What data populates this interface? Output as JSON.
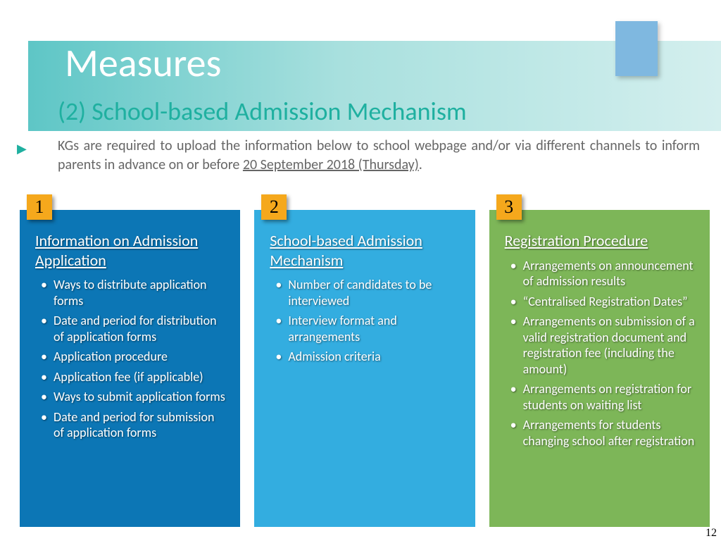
{
  "colors": {
    "header_grad_start": "#5ec6c6",
    "header_grad_end": "#d4efee",
    "corner_tab": "#7fb8e0",
    "subtitle": "#1fb0a0",
    "intro_text": "#666666",
    "card1_bg": "#0c76b5",
    "card2_bg": "#33ade0",
    "card3_bg": "#7db658",
    "badge_bg": "#f5a81c"
  },
  "title": "Measures",
  "subtitle": "(2) School-based Admission Mechanism",
  "intro_pre": "KGs are required to upload the information below to school webpage and/or via different channels to inform parents in advance on or before ",
  "intro_underlined": "20 September 2018 (Thursday)",
  "intro_post": ".",
  "page_number": "12",
  "cards": [
    {
      "badge": "1",
      "heading": "Information on Admission Application",
      "items": [
        "Ways to distribute application forms",
        "Date and period for distribution of application forms",
        "Application procedure",
        "Application fee   (if applicable)",
        "Ways to submit application forms",
        "Date and period for submission of application forms"
      ]
    },
    {
      "badge": "2",
      "heading": "School-based Admission Mechanism",
      "items": [
        "Number of candidates to be interviewed",
        "Interview format and arrangements",
        "Admission criteria"
      ]
    },
    {
      "badge": "3",
      "heading": "Registration Procedure",
      "items": [
        "Arrangements on announcement of admission results",
        " “Centralised Registration Dates”",
        "Arrangements on submission of a valid registration document and registration fee (including the amount)",
        "Arrangements on registration for students on waiting list",
        "Arrangements for students changing school after registration"
      ]
    }
  ]
}
